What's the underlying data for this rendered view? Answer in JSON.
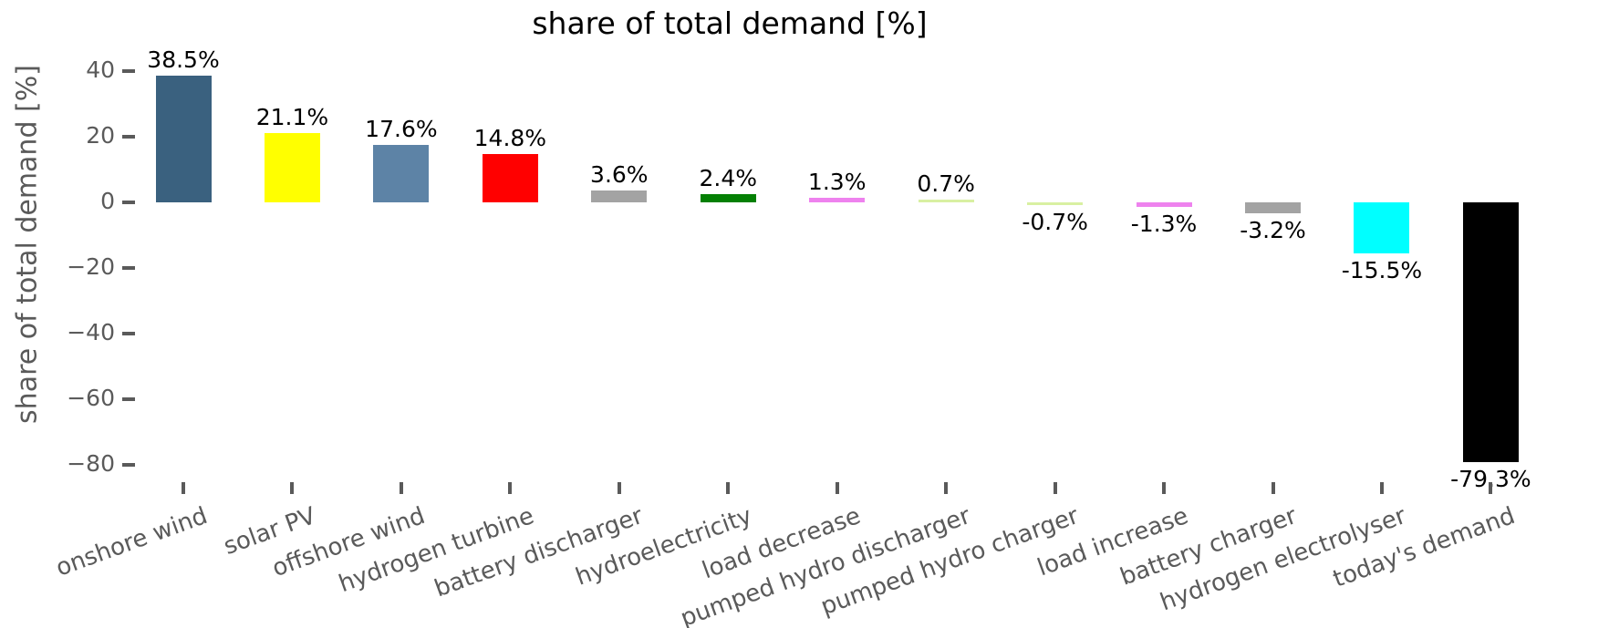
{
  "title": "share of total demand [%]",
  "chart_data": {
    "type": "bar",
    "title": "share of total demand [%]",
    "xlabel": "",
    "ylabel": "share of total demand [%]",
    "ylim": [
      -88,
      45
    ],
    "grid": false,
    "legend": false,
    "ytick_values": [
      40,
      20,
      0,
      -20,
      -40,
      -60,
      -80
    ],
    "ytick_labels": [
      "40",
      "20",
      "0",
      "−20",
      "−40",
      "−60",
      "−80"
    ],
    "categories": [
      "onshore wind",
      "solar PV",
      "offshore wind",
      "hydrogen turbine",
      "battery discharger",
      "hydroelectricity",
      "load decrease",
      "pumped hydro discharger",
      "pumped hydro charger",
      "load increase",
      "battery charger",
      "hydrogen electrolyser",
      "today's demand"
    ],
    "values": [
      38.5,
      21.1,
      17.6,
      14.8,
      3.6,
      2.4,
      1.3,
      0.7,
      -0.7,
      -1.3,
      -3.2,
      -15.5,
      -79.3
    ],
    "bar_labels": [
      "38.5%",
      "21.1%",
      "17.6%",
      "14.8%",
      "3.6%",
      "2.4%",
      "1.3%",
      "0.7%",
      "-0.7%",
      "-1.3%",
      "-3.2%",
      "-15.5%",
      "-79.3%"
    ],
    "colors": [
      "#3A617F",
      "#FFFF00",
      "#5D83A6",
      "#FF0000",
      "#A3A3A3",
      "#048004",
      "#EE82EE",
      "#D9F0A2",
      "#D9F0A2",
      "#EE82EE",
      "#A3A3A3",
      "#00FFFF",
      "#000000"
    ],
    "axis_text_color": "#5a5a5a"
  }
}
